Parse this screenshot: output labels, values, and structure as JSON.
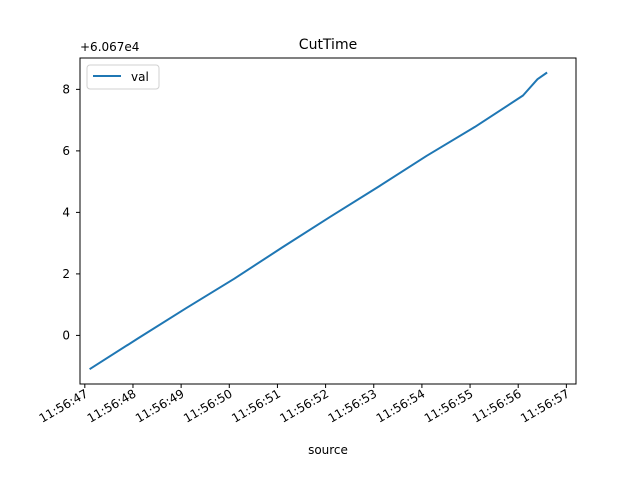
{
  "chart_data": {
    "type": "line",
    "title": "CutTime",
    "xlabel": "source",
    "ylabel": "",
    "y_offset_label": "+6.067e4",
    "x_tick_labels": [
      "11:56:47",
      "11:56:48",
      "11:56:49",
      "11:56:50",
      "11:56:51",
      "11:56:52",
      "11:56:53",
      "11:56:54",
      "11:56:55",
      "11:56:56",
      "11:56:57"
    ],
    "y_tick_labels": [
      "0",
      "2",
      "4",
      "6",
      "8"
    ],
    "y_ticks": [
      0,
      2,
      4,
      6,
      8
    ],
    "xlim": [
      "11:56:46.9",
      "11:56:57.2"
    ],
    "ylim": [
      -1.58,
      9.02
    ],
    "legend": {
      "position": "top-left",
      "entries": [
        "val"
      ]
    },
    "grid": false,
    "series": [
      {
        "name": "val",
        "color": "#1f77b4",
        "x": [
          "11:56:47.1",
          "11:56:48.1",
          "11:56:49.1",
          "11:56:50.1",
          "11:56:51.1",
          "11:56:52.1",
          "11:56:53.1",
          "11:56:54.1",
          "11:56:55.1",
          "11:56:56.1",
          "11:56:56.4",
          "11:56:56.6"
        ],
        "y": [
          -1.1,
          -0.1,
          0.88,
          1.84,
          2.86,
          3.86,
          4.84,
          5.84,
          6.78,
          7.8,
          8.33,
          8.55
        ]
      }
    ]
  }
}
